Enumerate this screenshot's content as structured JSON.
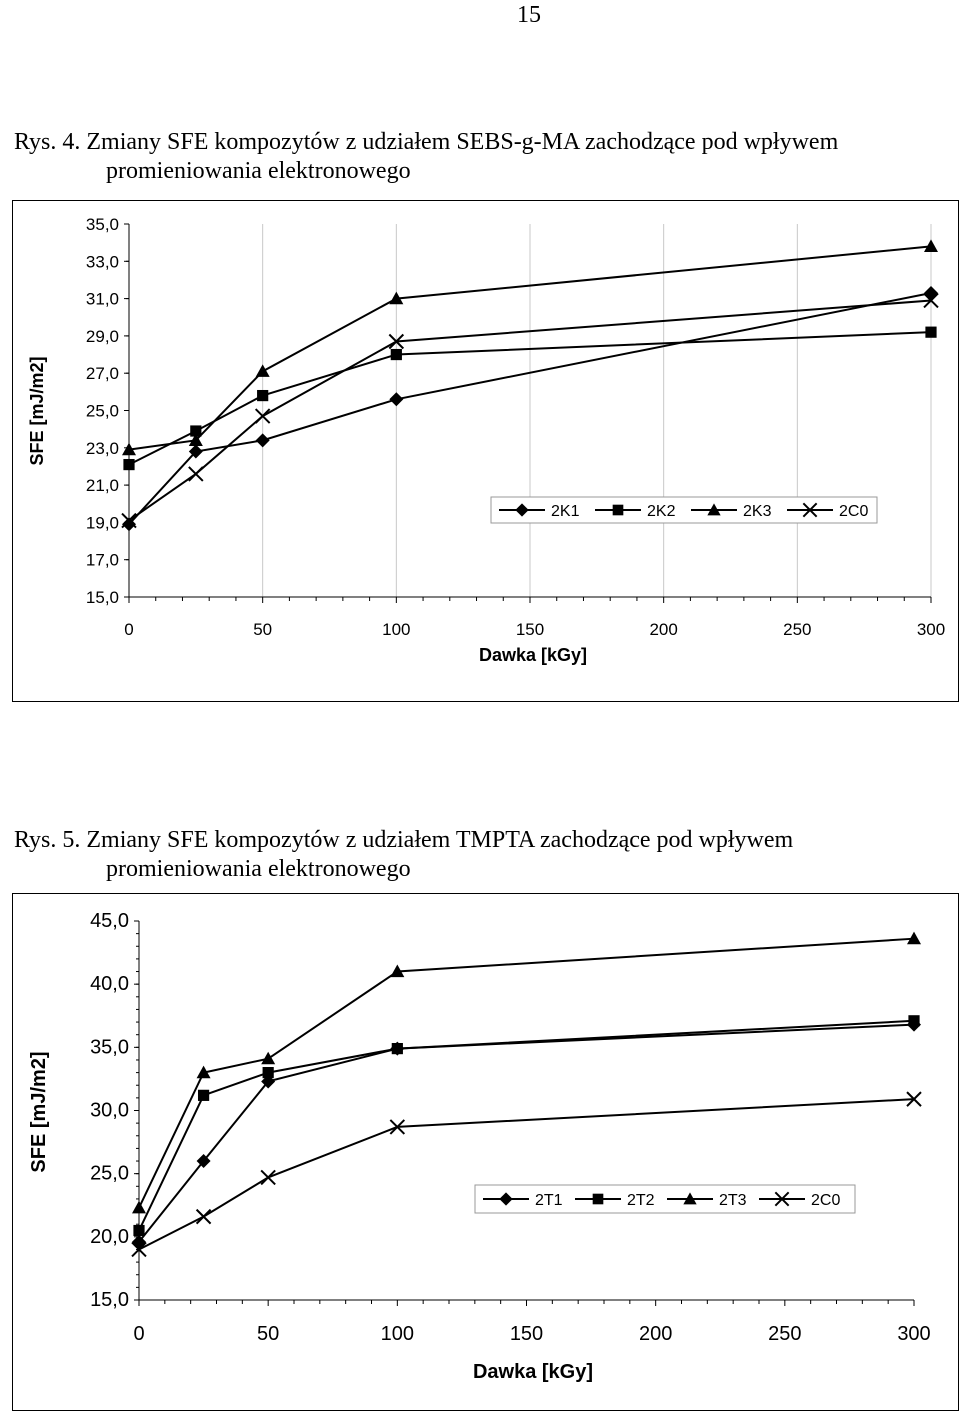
{
  "page_number": "15",
  "figures": [
    {
      "caption_line1": "Rys. 4. Zmiany SFE kompozytów z udziałem SEBS-g-MA zachodzące pod wpływem",
      "caption_line2": "promieniowania elektronowego"
    },
    {
      "caption_line1": "Rys. 5. Zmiany SFE kompozytów z udziałem TMPTA zachodzące pod wpływem",
      "caption_line2": "promieniowania elektronowego"
    }
  ],
  "chart_data": [
    {
      "type": "line",
      "xlabel": "Dawka [kGy]",
      "ylabel": "SFE [mJ/m2]",
      "xlim": [
        0,
        300
      ],
      "ylim": [
        15,
        35
      ],
      "x_ticks": [
        0,
        50,
        100,
        150,
        200,
        250,
        300
      ],
      "y_ticks": [
        15,
        17,
        19,
        21,
        23,
        25,
        27,
        29,
        31,
        33,
        35
      ],
      "decimal_comma": true,
      "grid": "vertical",
      "legend_position": "inside-lower-right",
      "series": [
        {
          "name": "2K1",
          "marker": "diamond",
          "x": [
            0,
            25,
            50,
            100,
            300
          ],
          "y": [
            18.9,
            22.8,
            23.4,
            25.6,
            31.3
          ]
        },
        {
          "name": "2K2",
          "marker": "square",
          "x": [
            0,
            25,
            50,
            100,
            300
          ],
          "y": [
            22.1,
            23.9,
            25.8,
            28.0,
            29.2
          ]
        },
        {
          "name": "2K3",
          "marker": "triangle",
          "x": [
            0,
            25,
            50,
            100,
            300
          ],
          "y": [
            22.9,
            23.4,
            27.1,
            31.0,
            33.8
          ]
        },
        {
          "name": "2C0",
          "marker": "x",
          "x": [
            0,
            25,
            50,
            100,
            300
          ],
          "y": [
            19.1,
            21.6,
            24.7,
            28.7,
            30.9
          ]
        }
      ]
    },
    {
      "type": "line",
      "xlabel": "Dawka [kGy]",
      "ylabel": "SFE [mJ/m2]",
      "xlim": [
        0,
        300
      ],
      "ylim": [
        15,
        45
      ],
      "x_ticks": [
        0,
        50,
        100,
        150,
        200,
        250,
        300
      ],
      "y_ticks": [
        15,
        20,
        25,
        30,
        35,
        40,
        45
      ],
      "decimal_comma": true,
      "grid": "none",
      "legend_position": "inside-lower-right",
      "series": [
        {
          "name": "2T1",
          "marker": "diamond",
          "x": [
            0,
            25,
            50,
            100,
            300
          ],
          "y": [
            19.6,
            26.0,
            32.3,
            34.9,
            36.8
          ]
        },
        {
          "name": "2T2",
          "marker": "square",
          "x": [
            0,
            25,
            50,
            100,
            300
          ],
          "y": [
            20.5,
            31.2,
            33.0,
            34.9,
            37.1
          ]
        },
        {
          "name": "2T3",
          "marker": "triangle",
          "x": [
            0,
            25,
            50,
            100,
            300
          ],
          "y": [
            22.3,
            33.0,
            34.1,
            41.0,
            43.6
          ]
        },
        {
          "name": "2C0",
          "marker": "x",
          "x": [
            0,
            25,
            50,
            100,
            300
          ],
          "y": [
            19.0,
            21.6,
            24.7,
            28.7,
            30.9
          ]
        }
      ]
    }
  ]
}
